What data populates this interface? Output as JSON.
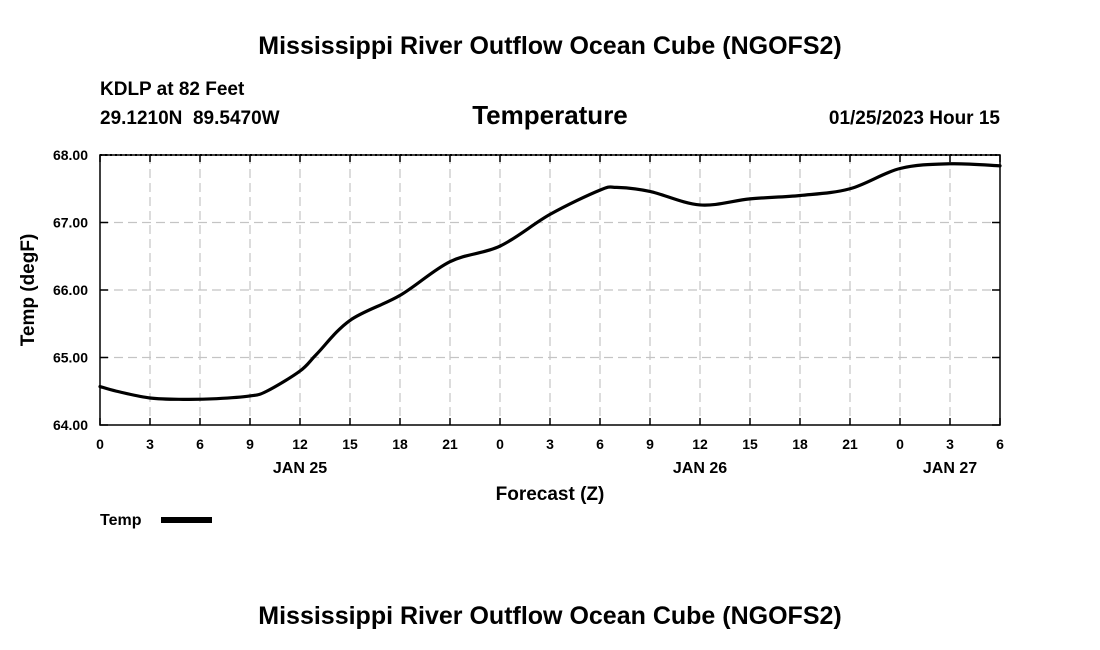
{
  "header": {
    "title": "Mississippi River Outflow Ocean Cube (NGOFS2)",
    "station": "KDLP at 82 Feet",
    "coords": "29.1210N  89.5470W",
    "datetime": "01/25/2023 Hour 15",
    "footer_title": "Mississippi River Outflow Ocean Cube (NGOFS2)"
  },
  "chart_data": {
    "type": "line",
    "title": "Temperature",
    "xlabel": "Forecast (Z)",
    "ylabel": "Temp (degF)",
    "xlim": [
      0,
      54
    ],
    "ylim": [
      64.0,
      68.0
    ],
    "x_ticks": [
      0,
      3,
      6,
      9,
      12,
      15,
      18,
      21,
      24,
      27,
      30,
      33,
      36,
      39,
      42,
      45,
      48,
      51,
      54
    ],
    "x_tick_labels": [
      "0",
      "3",
      "6",
      "9",
      "12",
      "15",
      "18",
      "21",
      "0",
      "3",
      "6",
      "9",
      "12",
      "15",
      "18",
      "21",
      "0",
      "3",
      "6"
    ],
    "y_ticks": [
      64.0,
      65.0,
      66.0,
      67.0,
      68.0
    ],
    "y_tick_labels": [
      "64.00",
      "65.00",
      "66.00",
      "67.00",
      "68.00"
    ],
    "date_labels": [
      {
        "x": 12,
        "label": "JAN 25"
      },
      {
        "x": 36,
        "label": "JAN 26"
      },
      {
        "x": 51,
        "label": "JAN 27"
      }
    ],
    "grid": true,
    "legend_position": "bottom-left",
    "series": [
      {
        "name": "Temp",
        "color": "#000000",
        "x": [
          0,
          1,
          3,
          5,
          7,
          9,
          10,
          12,
          13,
          15,
          18,
          21,
          24,
          27,
          30,
          31,
          33,
          36,
          39,
          42,
          45,
          48,
          51,
          54
        ],
        "values": [
          64.57,
          64.5,
          64.4,
          64.38,
          64.39,
          64.43,
          64.5,
          64.8,
          65.05,
          65.55,
          65.92,
          66.42,
          66.65,
          67.12,
          67.48,
          67.52,
          67.46,
          67.26,
          67.35,
          67.4,
          67.5,
          67.8,
          67.87,
          67.84
        ]
      }
    ]
  }
}
